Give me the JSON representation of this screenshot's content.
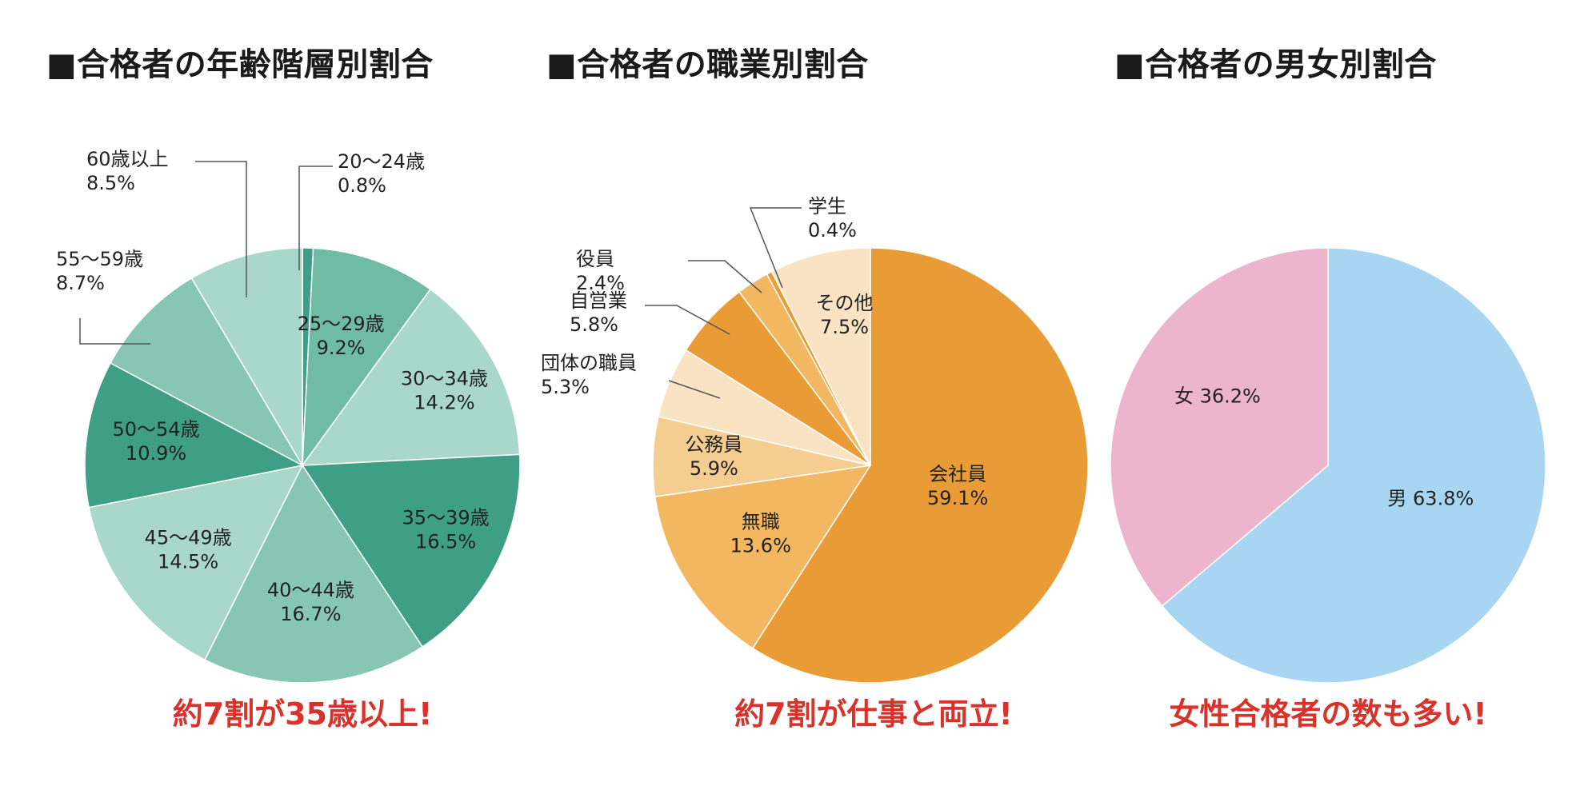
{
  "chart_data": [
    {
      "type": "pie",
      "title": "■合格者の年齢階層別割合",
      "caption": "約7割が35歳以上!",
      "slices": [
        {
          "label": "20〜24歳",
          "value": 0.8,
          "display": "0.8%",
          "color": "#3e9e86"
        },
        {
          "label": "25〜29歳",
          "value": 9.2,
          "display": "9.2%",
          "color": "#6fbba4"
        },
        {
          "label": "30〜34歳",
          "value": 14.2,
          "display": "14.2%",
          "color": "#a9d8cb"
        },
        {
          "label": "35〜39歳",
          "value": 16.5,
          "display": "16.5%",
          "color": "#3e9e86"
        },
        {
          "label": "40〜44歳",
          "value": 16.7,
          "display": "16.7%",
          "color": "#86c6b2"
        },
        {
          "label": "45〜49歳",
          "value": 14.5,
          "display": "14.5%",
          "color": "#a9d8cb"
        },
        {
          "label": "50〜54歳",
          "value": 10.9,
          "display": "10.9%",
          "color": "#3e9e86"
        },
        {
          "label": "55〜59歳",
          "value": 8.7,
          "display": "8.7%",
          "color": "#86c6b2"
        },
        {
          "label": "60歳以上",
          "value": 8.5,
          "display": "8.5%",
          "color": "#a9d8cb"
        }
      ]
    },
    {
      "type": "pie",
      "title": "■合格者の職業別割合",
      "caption": "約7割が仕事と両立!",
      "slices": [
        {
          "label": "会社員",
          "value": 59.1,
          "display": "59.1%",
          "color": "#e99b36"
        },
        {
          "label": "無職",
          "value": 13.6,
          "display": "13.6%",
          "color": "#f2b760"
        },
        {
          "label": "公務員",
          "value": 5.9,
          "display": "5.9%",
          "color": "#f5cd91"
        },
        {
          "label": "団体の職員",
          "value": 5.3,
          "display": "5.3%",
          "color": "#fae3c2"
        },
        {
          "label": "自営業",
          "value": 5.8,
          "display": "5.8%",
          "color": "#e99b36"
        },
        {
          "label": "役員",
          "value": 2.4,
          "display": "2.4%",
          "color": "#f2b760"
        },
        {
          "label": "学生",
          "value": 0.4,
          "display": "0.4%",
          "color": "#e99b36"
        },
        {
          "label": "その他",
          "value": 7.5,
          "display": "7.5%",
          "color": "#fae3c2"
        }
      ]
    },
    {
      "type": "pie",
      "title": "■合格者の男女別割合",
      "caption": "女性合格者の数も多い!",
      "slices": [
        {
          "label": "男",
          "value": 63.8,
          "display": "63.8%",
          "color": "#a8d6f2"
        },
        {
          "label": "女",
          "value": 36.2,
          "display": "36.2%",
          "color": "#ecb5cd"
        }
      ]
    }
  ]
}
